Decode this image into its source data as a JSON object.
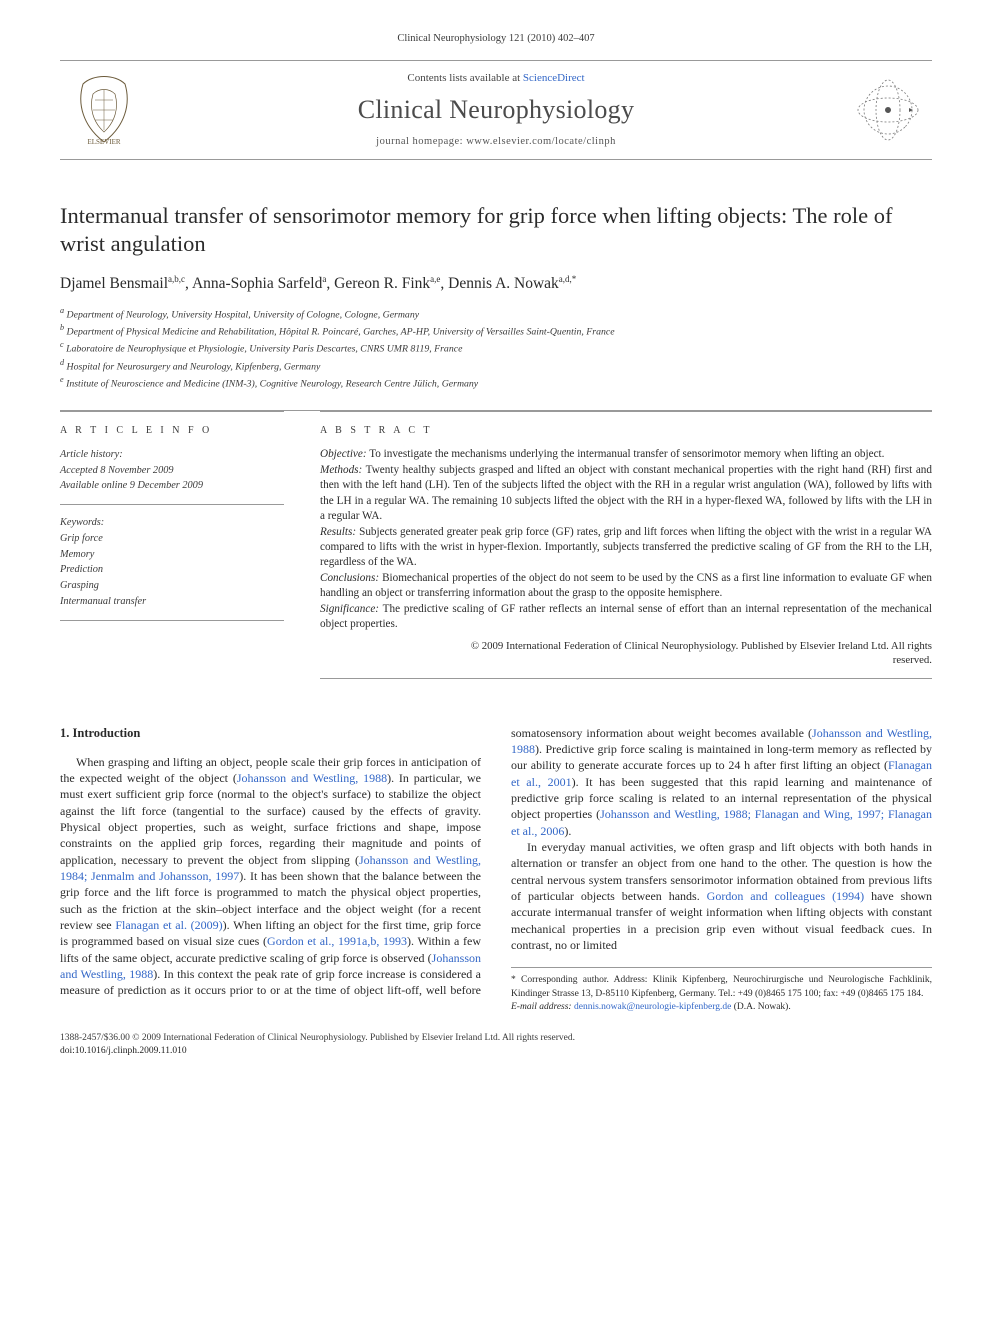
{
  "running_head": "Clinical Neurophysiology 121 (2010) 402–407",
  "banner": {
    "contents_prefix": "Contents lists available at ",
    "contents_link": "ScienceDirect",
    "journal": "Clinical Neurophysiology",
    "homepage_prefix": "journal homepage: ",
    "homepage_url": "www.elsevier.com/locate/clinph",
    "publisher_name": "ELSEVIER"
  },
  "title": "Intermanual transfer of sensorimotor memory for grip force when lifting objects: The role of wrist angulation",
  "authors_html": "Djamel Bensmail|a,b,c|, Anna-Sophia Sarfeld|a|, Gereon R. Fink|a,e|, Dennis A. Nowak|a,d,*|",
  "authors": [
    {
      "name": "Djamel Bensmail",
      "sup": "a,b,c"
    },
    {
      "name": "Anna-Sophia Sarfeld",
      "sup": "a"
    },
    {
      "name": "Gereon R. Fink",
      "sup": "a,e"
    },
    {
      "name": "Dennis A. Nowak",
      "sup": "a,d,*"
    }
  ],
  "affiliations": [
    {
      "key": "a",
      "text": "Department of Neurology, University Hospital, University of Cologne, Cologne, Germany"
    },
    {
      "key": "b",
      "text": "Department of Physical Medicine and Rehabilitation, Hôpital R. Poincaré, Garches, AP-HP, University of Versailles Saint-Quentin, France"
    },
    {
      "key": "c",
      "text": "Laboratoire de Neurophysique et Physiologie, University Paris Descartes, CNRS UMR 8119, France"
    },
    {
      "key": "d",
      "text": "Hospital for Neurosurgery and Neurology, Kipfenberg, Germany"
    },
    {
      "key": "e",
      "text": "Institute of Neuroscience and Medicine (INM-3), Cognitive Neurology, Research Centre Jülich, Germany"
    }
  ],
  "article_info_label": "A R T I C L E   I N F O",
  "abstract_label": "A B S T R A C T",
  "history": {
    "head": "Article history:",
    "accepted": "Accepted 8 November 2009",
    "online": "Available online 9 December 2009"
  },
  "keywords": {
    "head": "Keywords:",
    "items": [
      "Grip force",
      "Memory",
      "Prediction",
      "Grasping",
      "Intermanual transfer"
    ]
  },
  "abstract": {
    "objective_tag": "Objective:",
    "objective": " To investigate the mechanisms underlying the intermanual transfer of sensorimotor memory when lifting an object.",
    "methods_tag": "Methods:",
    "methods": " Twenty healthy subjects grasped and lifted an object with constant mechanical properties with the right hand (RH) first and then with the left hand (LH). Ten of the subjects lifted the object with the RH in a regular wrist angulation (WA), followed by lifts with the LH in a regular WA. The remaining 10 subjects lifted the object with the RH in a hyper-flexed WA, followed by lifts with the LH in a regular WA.",
    "results_tag": "Results:",
    "results": " Subjects generated greater peak grip force (GF) rates, grip and lift forces when lifting the object with the wrist in a regular WA compared to lifts with the wrist in hyper-flexion. Importantly, subjects transferred the predictive scaling of GF from the RH to the LH, regardless of the WA.",
    "conclusions_tag": "Conclusions:",
    "conclusions": " Biomechanical properties of the object do not seem to be used by the CNS as a first line information to evaluate GF when handling an object or transferring information about the grasp to the opposite hemisphere.",
    "significance_tag": "Significance:",
    "significance": " The predictive scaling of GF rather reflects an internal sense of effort than an internal representation of the mechanical object properties.",
    "copyright1": "© 2009 International Federation of Clinical Neurophysiology. Published by Elsevier Ireland Ltd. All rights",
    "copyright2": "reserved."
  },
  "introduction": {
    "heading": "1. Introduction",
    "p1_a": "When grasping and lifting an object, people scale their grip forces in anticipation of the expected weight of the object (",
    "p1_r1": "Johansson and Westling, 1988",
    "p1_b": "). In particular, we must exert sufficient grip force (normal to the object's surface) to stabilize the object against the lift force (tangential to the surface) caused by the effects of gravity. Physical object properties, such as weight, surface frictions and shape, impose constraints on the applied grip forces, regarding their magnitude and points of application, necessary to prevent the object from slipping (",
    "p1_r2": "Johansson and Westling, 1984; Jenmalm and Johansson, 1997",
    "p1_c": "). It has been shown that the balance between the grip force and the lift force is programmed to match the physical object properties, such as the friction at the skin–object interface and the object weight (for a recent review see ",
    "p1_r3": "Flanagan et al. (2009)",
    "p1_d": "). When lifting an object for the first time, grip force is programmed based on",
    "p2_a": "visual size cues (",
    "p2_r1": "Gordon et al., 1991a,b, 1993",
    "p2_b": "). Within a few lifts of the same object, accurate predictive scaling of grip force is observed (",
    "p2_r2": "Johansson and Westling, 1988",
    "p2_c": "). In this context the peak rate of grip force increase is considered a measure of prediction as it occurs prior to or at the time of object lift-off, well before somatosensory information about weight becomes available (",
    "p2_r3": "Johansson and Westling, 1988",
    "p2_d": "). Predictive grip force scaling is maintained in long-term memory as reflected by our ability to generate accurate forces up to 24 h after first lifting an object (",
    "p2_r4": "Flanagan et al., 2001",
    "p2_e": "). It has been suggested that this rapid learning and maintenance of predictive grip force scaling is related to an internal representation of the physical object properties (",
    "p2_r5": "Johansson and Westling, 1988; Flanagan and Wing, 1997; Flanagan et al., 2006",
    "p2_f": ").",
    "p3_a": "In everyday manual activities, we often grasp and lift objects with both hands in alternation or transfer an object from one hand to the other. The question is how the central nervous system transfers sensorimotor information obtained from previous lifts of particular objects between hands. ",
    "p3_r1": "Gordon and colleagues (1994)",
    "p3_b": " have shown accurate intermanual transfer of weight information when lifting objects with constant mechanical properties in a precision grip even without visual feedback cues. In contrast, no or limited"
  },
  "footnote": {
    "corr_label": "* Corresponding author.",
    "corr_body": " Address: Klinik Kipfenberg, Neurochirurgische und Neurologische Fachklinik, Kindinger Strasse 13, D-85110 Kipfenberg, Germany. Tel.: +49 (0)8465 175 100; fax: +49 (0)8465 175 184.",
    "email_label": "E-mail address:",
    "email": " dennis.nowak@neurologie-kipfenberg.de",
    "email_tail": " (D.A. Nowak)."
  },
  "footer": {
    "issn_line": "1388-2457/$36.00 © 2009 International Federation of Clinical Neurophysiology. Published by Elsevier Ireland Ltd. All rights reserved.",
    "doi": "doi:10.1016/j.clinph.2009.11.010"
  },
  "colors": {
    "link": "#3367c7",
    "text": "#2a2a2a",
    "rule": "#999999",
    "bg": "#ffffff"
  }
}
